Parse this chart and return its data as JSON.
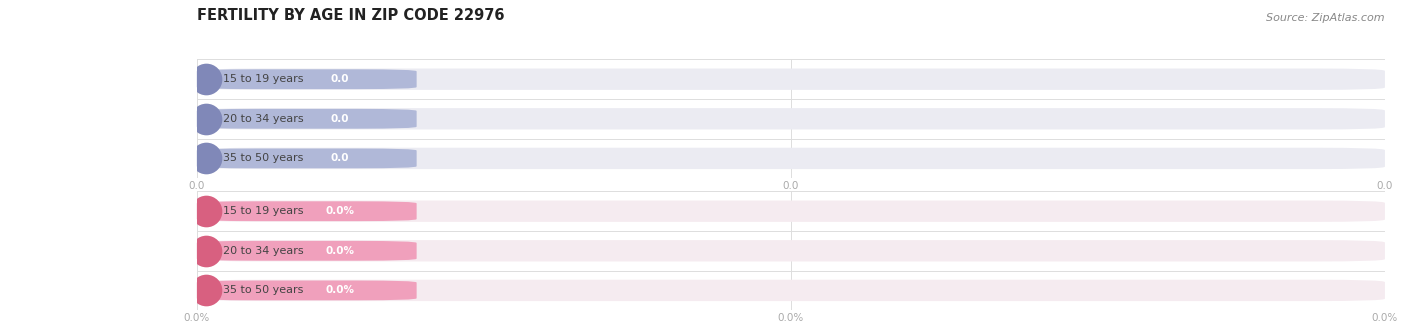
{
  "title": "FERTILITY BY AGE IN ZIP CODE 22976",
  "source": "Source: ZipAtlas.com",
  "categories": [
    "15 to 19 years",
    "20 to 34 years",
    "35 to 50 years"
  ],
  "values_count": [
    0.0,
    0.0,
    0.0
  ],
  "values_pct": [
    0.0,
    0.0,
    0.0
  ],
  "labels_count": [
    "0.0",
    "0.0",
    "0.0"
  ],
  "labels_pct": [
    "0.0%",
    "0.0%",
    "0.0%"
  ],
  "bar_color_count": "#b0b8d8",
  "bar_color_pct": "#f0a0bc",
  "bar_bg_color_count": "#ebebf2",
  "bar_bg_color_pct": "#f5ebf0",
  "text_color_dark": "#444444",
  "text_color_white": "#ffffff",
  "title_color": "#222222",
  "axis_tick_color": "#aaaaaa",
  "sep_line_color": "#dddddd",
  "background_color": "#ffffff",
  "pill_left_color_count": "#8088b8",
  "pill_left_color_pct": "#d86080",
  "source_color": "#888888",
  "xtick_labels_count": [
    "0.0",
    "0.0",
    "0.0"
  ],
  "xtick_labels_pct": [
    "0.0%",
    "0.0%",
    "0.0%"
  ]
}
